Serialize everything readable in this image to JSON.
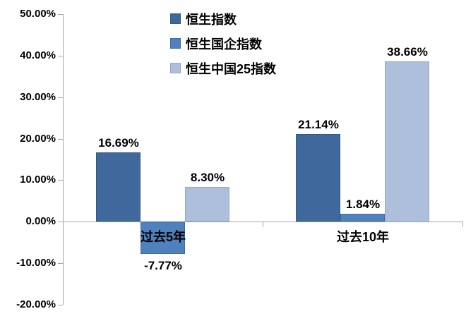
{
  "chart_data": {
    "type": "bar",
    "title": "",
    "categories": [
      "过去5年",
      "过去10年"
    ],
    "series": [
      {
        "name": "恒生指数",
        "color": "#3F699C",
        "border": "#35597f",
        "values": [
          16.69,
          21.14
        ],
        "labels": [
          "16.69%",
          "21.14%"
        ]
      },
      {
        "name": "恒生国企指数",
        "color": "#4F81BD",
        "border": "#416b9e",
        "values": [
          -7.77,
          1.84
        ],
        "labels": [
          "-7.77%",
          "1.84%"
        ]
      },
      {
        "name": "恒生中国25指数",
        "color": "#AEBFDC",
        "border": "#93a9c9",
        "values": [
          8.3,
          38.66
        ],
        "labels": [
          "8.30%",
          "38.66%"
        ]
      }
    ],
    "ylim": [
      -20,
      50
    ],
    "ytick_step": 10,
    "yticks": [
      "50.00%",
      "40.00%",
      "30.00%",
      "20.00%",
      "10.00%",
      "0.00%",
      "-10.00%",
      "-20.00%"
    ],
    "legend_position": "top-center",
    "grid": false,
    "axis_color": "#a6a6a6",
    "text_color": "#000000",
    "background_color": "#ffffff"
  }
}
